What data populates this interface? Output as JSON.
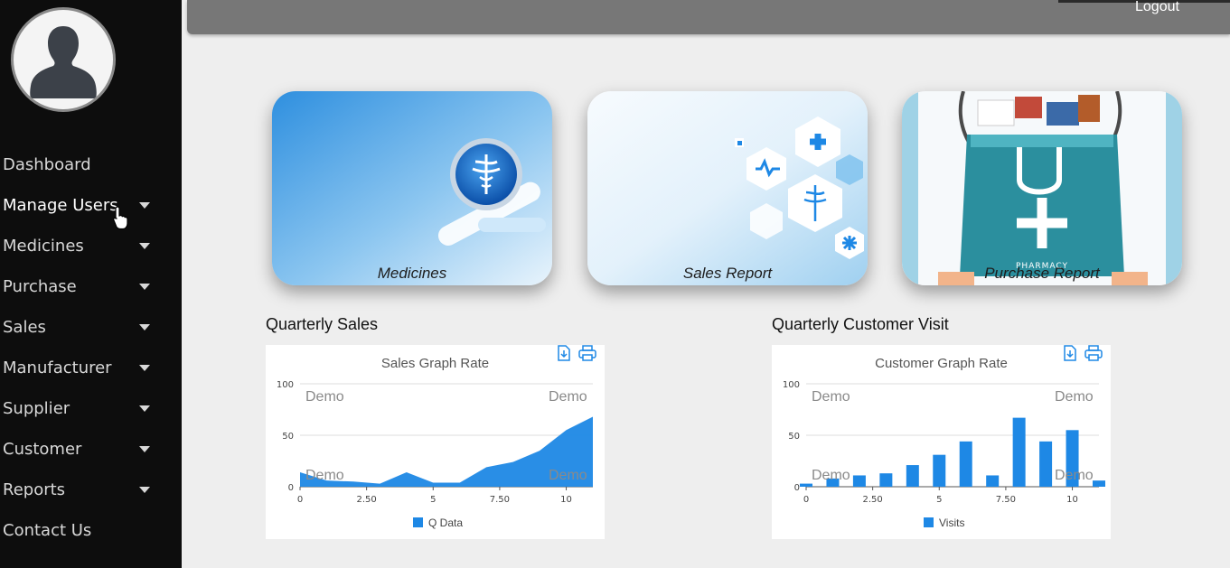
{
  "sidebar": {
    "items": [
      {
        "label": "Dashboard",
        "caret": false,
        "active": false
      },
      {
        "label": "Manage Users",
        "caret": true,
        "active": true
      },
      {
        "label": "Medicines",
        "caret": true,
        "active": false
      },
      {
        "label": "Purchase",
        "caret": true,
        "active": false
      },
      {
        "label": "Sales",
        "caret": true,
        "active": false
      },
      {
        "label": "Manufacturer",
        "caret": true,
        "active": false
      },
      {
        "label": "Supplier",
        "caret": true,
        "active": false
      },
      {
        "label": "Customer",
        "caret": true,
        "active": false
      },
      {
        "label": "Reports",
        "caret": true,
        "active": false
      },
      {
        "label": "Contact Us",
        "caret": false,
        "active": false
      }
    ]
  },
  "header": {
    "logout_label": "Logout"
  },
  "cards": [
    {
      "caption": "Medicines",
      "icon": "caduceus-icon"
    },
    {
      "caption": "Sales Report",
      "icon": "health-hexagon-icon"
    },
    {
      "caption": "Purchase Report",
      "icon": "pharmacy-bag-icon"
    }
  ],
  "sections": {
    "sales_title": "Quarterly Sales",
    "visits_title": "Quarterly Customer Visit"
  },
  "watermark": "Demo",
  "colors": {
    "series": "#1e88e5",
    "sidebar": "#0d0d0d",
    "topbar": "#777777"
  },
  "chart_data": [
    {
      "type": "area",
      "title": "Sales Graph Rate",
      "x": [
        0,
        1,
        2,
        3,
        4,
        5,
        6,
        7,
        8,
        9,
        10,
        11
      ],
      "series": [
        {
          "name": "Q Data",
          "values": [
            14,
            6,
            5,
            3,
            14,
            4,
            4,
            19,
            24,
            35,
            55,
            68
          ]
        }
      ],
      "xticks": [
        "0",
        "2.50",
        "5",
        "7.50",
        "10"
      ],
      "yticks": [
        "0",
        "50",
        "100"
      ],
      "xlim": [
        0,
        11
      ],
      "ylim": [
        0,
        100
      ],
      "legend": "bottom"
    },
    {
      "type": "bar",
      "title": "Customer Graph Rate",
      "x": [
        0,
        1,
        2,
        3,
        4,
        5,
        6,
        7,
        8,
        9,
        10,
        11
      ],
      "series": [
        {
          "name": "Visits",
          "values": [
            3,
            8,
            11,
            13,
            21,
            31,
            44,
            11,
            67,
            44,
            55,
            6
          ]
        }
      ],
      "xticks": [
        "0",
        "2.50",
        "5",
        "7.50",
        "10"
      ],
      "yticks": [
        "0",
        "50",
        "100"
      ],
      "xlim": [
        0,
        11
      ],
      "ylim": [
        0,
        100
      ],
      "legend": "bottom"
    }
  ]
}
